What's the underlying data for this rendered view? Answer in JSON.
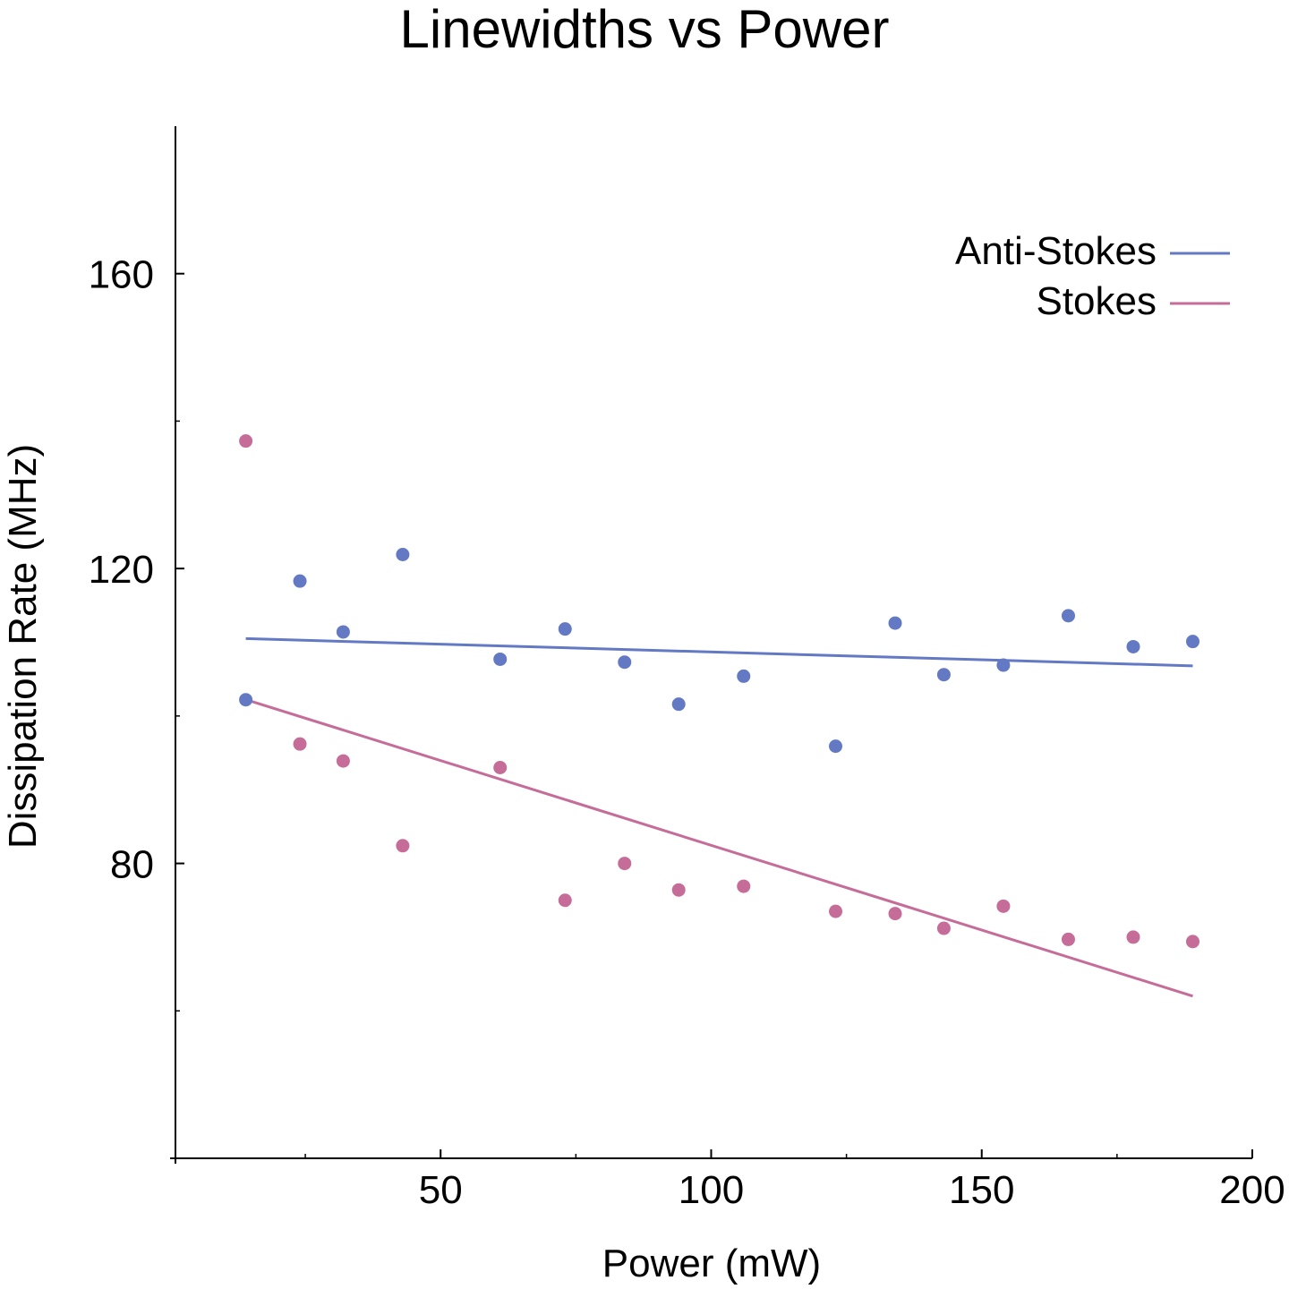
{
  "chart_data": {
    "type": "scatter",
    "title": "Linewidths vs Power",
    "xlabel": "Power (mW)",
    "ylabel": "Dissipation Rate (MHz)",
    "xlim": [
      1,
      200
    ],
    "ylim": [
      40,
      180
    ],
    "x_ticks": [
      50,
      100,
      150,
      200
    ],
    "y_ticks": [
      80,
      120,
      160
    ],
    "x_minor_ticks": [
      25,
      75,
      125,
      175
    ],
    "y_minor_ticks": [
      60,
      100,
      140
    ],
    "grid": false,
    "legend_position": "top-right",
    "x": [
      14,
      24,
      32,
      43,
      61,
      73,
      84,
      94,
      106,
      123,
      134,
      143,
      154,
      166,
      178,
      189
    ],
    "series": [
      {
        "name": "Anti-Stokes",
        "color": "#6379c4",
        "points": [
          [
            14,
            102.2
          ],
          [
            24,
            118.3
          ],
          [
            32,
            111.4
          ],
          [
            43,
            121.9
          ],
          [
            61,
            107.7
          ],
          [
            73,
            111.8
          ],
          [
            84,
            107.3
          ],
          [
            94,
            101.6
          ],
          [
            106,
            105.4
          ],
          [
            123,
            95.9
          ],
          [
            134,
            112.6
          ],
          [
            143,
            105.6
          ],
          [
            154,
            106.9
          ],
          [
            166,
            113.6
          ],
          [
            178,
            109.4
          ],
          [
            189,
            110.1
          ]
        ],
        "fit": {
          "x": [
            14,
            189
          ],
          "y": [
            110.5,
            106.8
          ]
        }
      },
      {
        "name": "Stokes",
        "color": "#c66c99",
        "points": [
          [
            14,
            137.3
          ],
          [
            24,
            96.2
          ],
          [
            32,
            93.9
          ],
          [
            43,
            82.4
          ],
          [
            61,
            93.0
          ],
          [
            73,
            75.0
          ],
          [
            84,
            80.0
          ],
          [
            94,
            76.4
          ],
          [
            106,
            76.9
          ],
          [
            123,
            73.5
          ],
          [
            134,
            73.2
          ],
          [
            143,
            71.2
          ],
          [
            154,
            74.2
          ],
          [
            166,
            69.7
          ],
          [
            178,
            70.0
          ],
          [
            189,
            69.4
          ]
        ],
        "fit": {
          "x": [
            15,
            189
          ],
          "y": [
            102.0,
            62.0
          ]
        }
      }
    ]
  }
}
